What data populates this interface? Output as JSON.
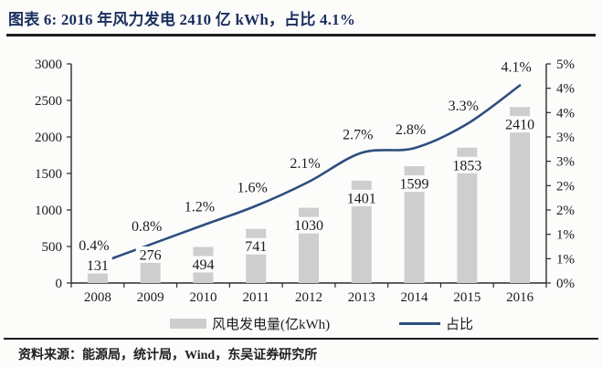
{
  "title": "图表 6: 2016 年风力发电 2410 亿 kWh，占比 4.1%",
  "source": "资料来源：能源局，统计局，Wind，东吴证券研究所",
  "colors": {
    "title": "#1a2f5e",
    "bar": "#cecece",
    "line": "#2d4e7e",
    "axis": "#2b2b2b",
    "text": "#1c1c1c",
    "background": "#fcfcfb"
  },
  "legend": [
    {
      "swatch": "bar",
      "label": "风电发电量(亿kWh)"
    },
    {
      "swatch": "line",
      "label": "占比"
    }
  ],
  "chart_data": {
    "type": "bar+line combo",
    "categories": [
      "2008",
      "2009",
      "2010",
      "2011",
      "2012",
      "2013",
      "2014",
      "2015",
      "2016"
    ],
    "series": [
      {
        "name": "风电发电量(亿kWh)",
        "type": "bar",
        "axis": "left",
        "values": [
          131,
          276,
          494,
          741,
          1030,
          1401,
          1599,
          1853,
          2410
        ],
        "labels": [
          "131",
          "276",
          "494",
          "741",
          "1030",
          "1401",
          "1599",
          "1853",
          "2410"
        ]
      },
      {
        "name": "占比",
        "type": "line",
        "axis": "right",
        "values": [
          0.4,
          0.8,
          1.2,
          1.6,
          2.1,
          2.7,
          2.8,
          3.3,
          4.1
        ],
        "labels": [
          "0.4%",
          "0.8%",
          "1.2%",
          "1.6%",
          "2.1%",
          "2.7%",
          "2.8%",
          "3.3%",
          "4.1%"
        ]
      }
    ],
    "left_axis": {
      "min": 0,
      "max": 3000,
      "step": 500,
      "ticks": [
        "0",
        "500",
        "1000",
        "1500",
        "2000",
        "2500",
        "3000"
      ]
    },
    "right_axis": {
      "min": 0,
      "max": 5,
      "unit": "percent",
      "ticks": [
        "0%",
        "1%",
        "1%",
        "2%",
        "2%",
        "3%",
        "3%",
        "4%",
        "4%",
        "5%"
      ]
    },
    "grid": false,
    "legend_position": "bottom",
    "data_labels": true
  }
}
